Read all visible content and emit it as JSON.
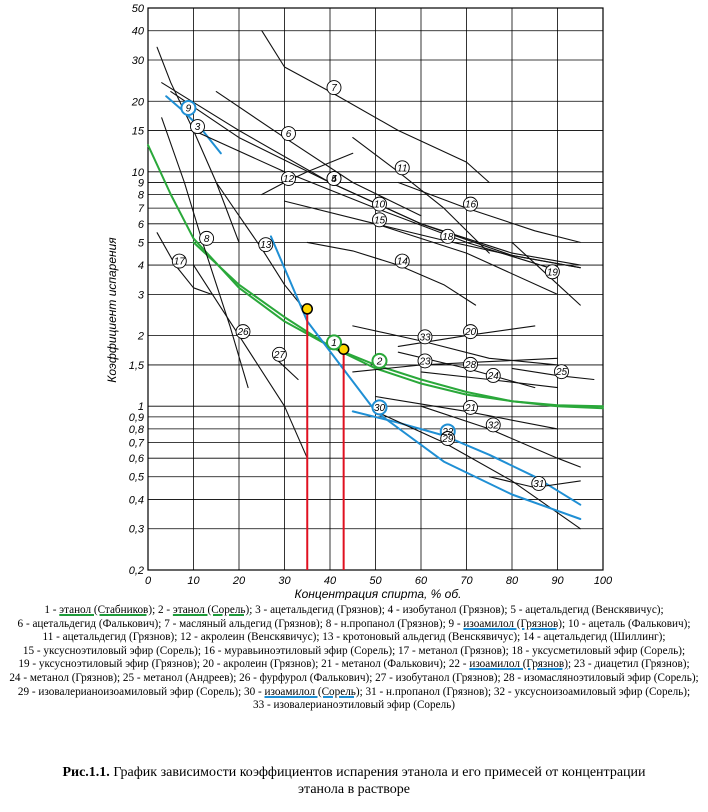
{
  "chart_data": {
    "type": "line",
    "xlabel": "Концентрация спирта, % об.",
    "ylabel": "Коэффициент испарения",
    "xlim": [
      0,
      100
    ],
    "ylim": [
      0.2,
      50
    ],
    "yscale": "log",
    "xticks": [
      "0",
      "10",
      "20",
      "30",
      "40",
      "50",
      "60",
      "70",
      "80",
      "90",
      "100"
    ],
    "yticks": [
      "0,2",
      "0,3",
      "0,4",
      "0,5",
      "0,6",
      "0,7",
      "0,8",
      "0,9",
      "1",
      "1,5",
      "2",
      "3",
      "4",
      "5",
      "6",
      "7",
      "8",
      "9",
      "10",
      "15",
      "20",
      "30",
      "40",
      "50"
    ],
    "series": [
      {
        "id": "1",
        "name": "этанол (Стабников)",
        "color": "#2aa83a",
        "x": [
          0,
          5,
          10,
          20,
          30,
          40,
          50,
          60,
          70,
          80,
          90,
          100
        ],
        "y": [
          13,
          8,
          5.2,
          3.2,
          2.3,
          1.8,
          1.45,
          1.25,
          1.12,
          1.05,
          1.01,
          1.0
        ]
      },
      {
        "id": "2",
        "name": "этанол (Сорель)",
        "color": "#2aa83a",
        "x": [
          10,
          20,
          30,
          40,
          50,
          60,
          70,
          80,
          90,
          100
        ],
        "y": [
          5.0,
          3.3,
          2.4,
          1.8,
          1.5,
          1.3,
          1.15,
          1.05,
          1.0,
          0.98
        ]
      },
      {
        "id": "3",
        "name": "ацетальдегид (Грязнов)",
        "color": "#111111",
        "x": [
          2,
          5,
          10,
          15,
          20
        ],
        "y": [
          34,
          24,
          15,
          9,
          5
        ]
      },
      {
        "id": "4",
        "name": "изобутанол (Грязнов)",
        "color": "#111111",
        "x": [
          3,
          20,
          40,
          60,
          80,
          95
        ],
        "y": [
          24,
          15,
          9,
          6,
          4.4,
          3.9
        ]
      },
      {
        "id": "5",
        "name": "ацетальдегид (Венскявичус)",
        "color": "#111111",
        "x": [
          5,
          20,
          40,
          60,
          80,
          95
        ],
        "y": [
          22,
          14,
          9,
          6,
          4.5,
          4.0
        ]
      },
      {
        "id": "6",
        "name": "ацетальдегид (Фалькович)",
        "color": "#111111",
        "x": [
          15,
          30,
          45,
          60
        ],
        "y": [
          22,
          14,
          9,
          6.5
        ]
      },
      {
        "id": "7",
        "name": "масляный альдегид (Грязнов)",
        "color": "#111111",
        "x": [
          25,
          30,
          40,
          55,
          70,
          75
        ],
        "y": [
          40,
          28,
          22,
          15,
          11,
          9
        ]
      },
      {
        "id": "8",
        "name": "н.пропанол (Грязнов)",
        "color": "#111111",
        "x": [
          3,
          8,
          12,
          18,
          22
        ],
        "y": [
          17,
          9,
          5,
          2.2,
          1.2
        ]
      },
      {
        "id": "9",
        "name": "изоамилол (Грязнов)",
        "color": "#1f8fd4",
        "x": [
          4,
          8,
          12,
          16
        ],
        "y": [
          21,
          18,
          15,
          12
        ]
      },
      {
        "id": "10",
        "name": "ацеталь (Фалькович)",
        "color": "#111111",
        "x": [
          10,
          30,
          50,
          70,
          90
        ],
        "y": [
          15,
          10,
          7,
          5,
          3.8
        ]
      },
      {
        "id": "11",
        "name": "ацетальдегид (Грязнов)",
        "color": "#111111",
        "x": [
          45,
          55,
          65,
          75
        ],
        "y": [
          14,
          10,
          7,
          4.5
        ]
      },
      {
        "id": "12",
        "name": "акролеин (Венскявичус)",
        "color": "#111111",
        "x": [
          25,
          30,
          35,
          45
        ],
        "y": [
          8,
          9,
          10,
          12
        ]
      },
      {
        "id": "13",
        "name": "кротоновый альдегид (Венскявичус)",
        "color": "#111111",
        "x": [
          15,
          20,
          25,
          30,
          35
        ],
        "y": [
          9,
          6.5,
          4.7,
          3.3,
          2.5
        ]
      },
      {
        "id": "14",
        "name": "ацетальдегид (Шиллинг)",
        "color": "#111111",
        "x": [
          35,
          45,
          55,
          65,
          72
        ],
        "y": [
          5,
          4.6,
          4.0,
          3.3,
          2.7
        ]
      },
      {
        "id": "15",
        "name": "уксусноэтиловый эфир (Сорель)",
        "color": "#111111",
        "x": [
          30,
          50,
          70,
          90
        ],
        "y": [
          7.5,
          6,
          4.5,
          3
        ]
      },
      {
        "id": "16",
        "name": "муравьиноэтиловый эфир (Сорель)",
        "color": "#111111",
        "x": [
          55,
          70,
          85,
          95
        ],
        "y": [
          9,
          7,
          5.6,
          5
        ]
      },
      {
        "id": "17",
        "name": "метанол (Грязнов)",
        "color": "#111111",
        "x": [
          2,
          6,
          10,
          14
        ],
        "y": [
          5.5,
          4.0,
          3.2,
          3.0
        ]
      },
      {
        "id": "18",
        "name": "уксусметиловый эфир (Сорель)",
        "color": "#111111",
        "x": [
          50,
          65,
          80,
          95
        ],
        "y": [
          6,
          5.1,
          4.4,
          3.9
        ]
      },
      {
        "id": "19",
        "name": "уксусноэтиловый эфир (Грязнов)",
        "color": "#111111",
        "x": [
          80,
          88,
          95
        ],
        "y": [
          5,
          3.6,
          2.7
        ]
      },
      {
        "id": "20",
        "name": "акролеин (Грязнов)",
        "color": "#111111",
        "x": [
          55,
          70,
          85
        ],
        "y": [
          1.8,
          2.0,
          2.2
        ]
      },
      {
        "id": "21",
        "name": "метанол (Фалькович)",
        "color": "#111111",
        "x": [
          50,
          70,
          90
        ],
        "y": [
          1.1,
          0.95,
          0.8
        ]
      },
      {
        "id": "22",
        "name": "изоамилол (Грязнов)",
        "color": "#1f8fd4",
        "x": [
          45,
          55,
          65,
          75,
          85,
          95
        ],
        "y": [
          0.95,
          0.85,
          0.75,
          0.62,
          0.5,
          0.38
        ]
      },
      {
        "id": "23",
        "name": "диацетил (Грязнов)",
        "color": "#111111",
        "x": [
          45,
          60,
          75,
          90
        ],
        "y": [
          1.4,
          1.5,
          1.55,
          1.6
        ]
      },
      {
        "id": "24",
        "name": "метанол (Грязнов)",
        "color": "#111111",
        "x": [
          60,
          75,
          90
        ],
        "y": [
          1.4,
          1.3,
          1.2
        ]
      },
      {
        "id": "25",
        "name": "метанол (Андреев)",
        "color": "#111111",
        "x": [
          80,
          90,
          98
        ],
        "y": [
          1.45,
          1.35,
          1.3
        ]
      },
      {
        "id": "26",
        "name": "фурфурол (Фалькович)",
        "color": "#111111",
        "x": [
          10,
          20,
          30,
          35
        ],
        "y": [
          4,
          2.0,
          1.0,
          0.6
        ]
      },
      {
        "id": "27",
        "name": "изобутанол (Грязнов)",
        "color": "#111111",
        "x": [
          28,
          33
        ],
        "y": [
          1.6,
          1.3
        ]
      },
      {
        "id": "28",
        "name": "изомасляноэтиловый эфир (Сорель)",
        "color": "#111111",
        "x": [
          55,
          70,
          85
        ],
        "y": [
          1.7,
          1.45,
          1.2
        ]
      },
      {
        "id": "29",
        "name": "изовалерианоизоамиловый эфир (Сорель)",
        "color": "#111111",
        "x": [
          50,
          65,
          80,
          95
        ],
        "y": [
          0.95,
          0.7,
          0.48,
          0.3
        ]
      },
      {
        "id": "30",
        "name": "изоамилол (Сорель)",
        "color": "#1f8fd4",
        "x": [
          27,
          35,
          50,
          65,
          80,
          95
        ],
        "y": [
          5.3,
          2.3,
          0.95,
          0.58,
          0.42,
          0.33
        ]
      },
      {
        "id": "31",
        "name": "н.пропанол (Грязнов)",
        "color": "#111111",
        "x": [
          75,
          85,
          95
        ],
        "y": [
          0.5,
          0.45,
          0.48
        ]
      },
      {
        "id": "32",
        "name": "уксусноизоамиловый эфир (Сорель)",
        "color": "#111111",
        "x": [
          60,
          75,
          90,
          95
        ],
        "y": [
          1.0,
          0.8,
          0.6,
          0.55
        ]
      },
      {
        "id": "33",
        "name": "изовалерианоэтиловый эфир (Сорель)",
        "color": "#111111",
        "x": [
          45,
          60,
          75,
          90
        ],
        "y": [
          2.2,
          1.9,
          1.6,
          1.5
        ]
      }
    ],
    "markers": [
      {
        "x": 35,
        "y": 2.6,
        "color": "#ffd700"
      },
      {
        "x": 43,
        "y": 1.75,
        "color": "#ffd700"
      }
    ],
    "marker_guides_color": "#e01020",
    "highlight_circles": [
      {
        "series": "1",
        "color": "#2aa83a"
      },
      {
        "series": "2",
        "color": "#2aa83a"
      },
      {
        "series": "9",
        "color": "#1f8fd4"
      },
      {
        "series": "22",
        "color": "#1f8fd4"
      },
      {
        "series": "30",
        "color": "#1f8fd4"
      }
    ]
  },
  "legend": [
    {
      "no": "1",
      "text": "этанол (Стабников)",
      "hl": "green"
    },
    {
      "no": "2",
      "text": "этанол (Сорель)",
      "hl": "green"
    },
    {
      "no": "3",
      "text": "ацетальдегид (Грязнов)",
      "hl": ""
    },
    {
      "no": "4",
      "text": "изобутанол (Грязнов)",
      "hl": ""
    },
    {
      "no": "5",
      "text": "ацетальдегид (Венскявичус)",
      "hl": ""
    },
    {
      "no": "6",
      "text": "ацетальдегид (Фалькович)",
      "hl": ""
    },
    {
      "no": "7",
      "text": "масляный альдегид (Грязнов)",
      "hl": ""
    },
    {
      "no": "8",
      "text": "н.пропанол (Грязнов)",
      "hl": ""
    },
    {
      "no": "9",
      "text": "изоамилол (Грязнов)",
      "hl": "blue"
    },
    {
      "no": "10",
      "text": "ацеталь (Фалькович)",
      "hl": ""
    },
    {
      "no": "11",
      "text": "ацетальдегид (Грязнов)",
      "hl": ""
    },
    {
      "no": "12",
      "text": "акролеин (Венскявичус)",
      "hl": ""
    },
    {
      "no": "13",
      "text": "кротоновый альдегид (Венскявичус)",
      "hl": ""
    },
    {
      "no": "14",
      "text": "ацетальдегид (Шиллинг)",
      "hl": ""
    },
    {
      "no": "15",
      "text": "уксусноэтиловый эфир (Сорель)",
      "hl": ""
    },
    {
      "no": "16",
      "text": "муравьиноэтиловый эфир (Сорель)",
      "hl": ""
    },
    {
      "no": "17",
      "text": "метанол (Грязнов)",
      "hl": ""
    },
    {
      "no": "18",
      "text": "уксусметиловый эфир (Сорель)",
      "hl": ""
    },
    {
      "no": "19",
      "text": "уксусноэтиловый эфир (Грязнов)",
      "hl": ""
    },
    {
      "no": "20",
      "text": "акролеин (Грязнов)",
      "hl": ""
    },
    {
      "no": "21",
      "text": "метанол (Фалькович)",
      "hl": ""
    },
    {
      "no": "22",
      "text": "изоамилол (Грязнов)",
      "hl": "blue"
    },
    {
      "no": "23",
      "text": "диацетил (Грязнов)",
      "hl": ""
    },
    {
      "no": "24",
      "text": "метанол (Грязнов)",
      "hl": ""
    },
    {
      "no": "25",
      "text": "метанол (Андреев)",
      "hl": ""
    },
    {
      "no": "26",
      "text": "фурфурол (Фалькович)",
      "hl": ""
    },
    {
      "no": "27",
      "text": "изобутанол (Грязнов)",
      "hl": ""
    },
    {
      "no": "28",
      "text": "изомасляноэтиловый эфир (Сорель)",
      "hl": ""
    },
    {
      "no": "29",
      "text": "изовалерианоизоамиловый эфир (Сорель)",
      "hl": ""
    },
    {
      "no": "30",
      "text": "изоамилол (Сорель)",
      "hl": "blue"
    },
    {
      "no": "31",
      "text": "н.пропанол (Грязнов)",
      "hl": ""
    },
    {
      "no": "32",
      "text": "уксусноизоамиловый эфир (Сорель)",
      "hl": ""
    },
    {
      "no": "33",
      "text": "изовалерианоэтиловый эфир (Сорель)",
      "hl": ""
    }
  ],
  "caption": {
    "label": "Рис.1.1.",
    "text": "График зависимости коэффициентов испарения этанола и его примесей от концентрации этанола в растворе"
  }
}
